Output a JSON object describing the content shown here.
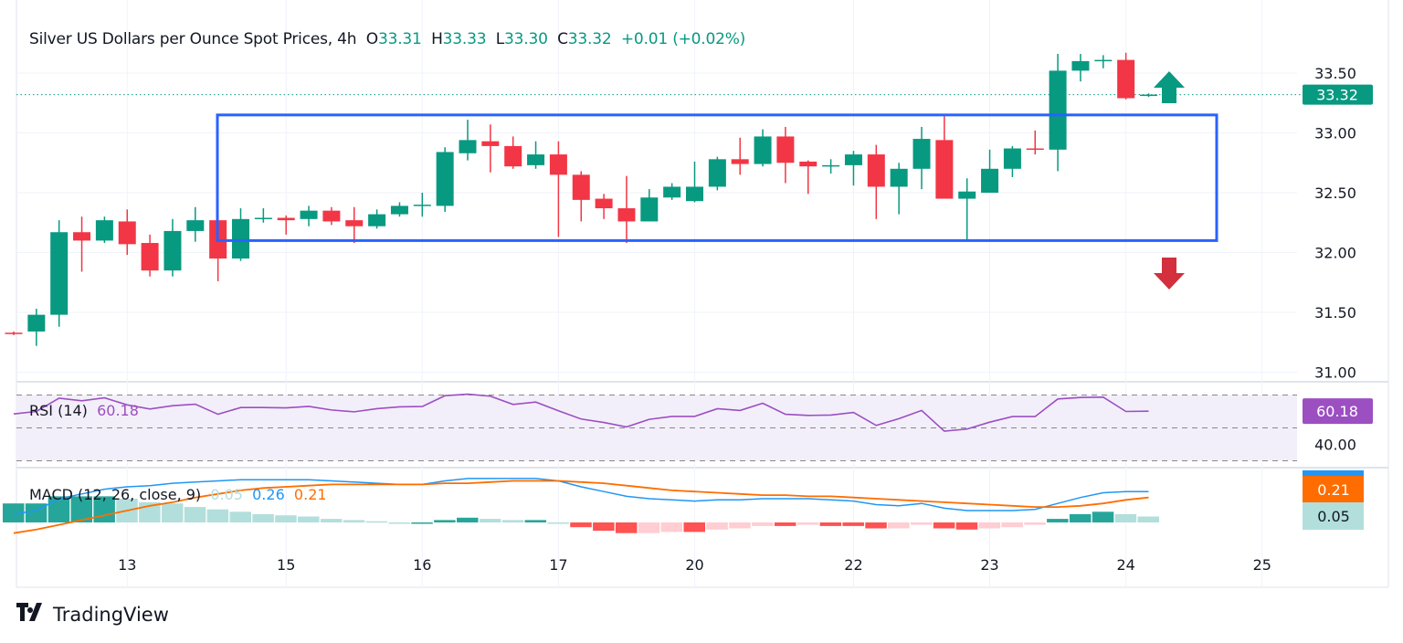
{
  "legend": {
    "title": "Silver US Dollars per Ounce Spot Prices, 4h",
    "o_label": "O",
    "o_value": "33.31",
    "h_label": "H",
    "h_value": "33.33",
    "l_label": "L",
    "l_value": "33.30",
    "c_label": "C",
    "c_value": "33.32",
    "change": "+0.01 (+0.02%)"
  },
  "rsi": {
    "label": "RSI (14)",
    "value": "60.18",
    "axis_label": "40.00",
    "badge": "60.18"
  },
  "macd": {
    "label": "MACD (12, 26, close, 9)",
    "hist_value": "0.05",
    "macd_value": "0.26",
    "signal_value": "0.21",
    "badge_signal": "0.21",
    "badge_hist": "0.05"
  },
  "price_badge": "33.32",
  "logo": {
    "text": "TradingView"
  },
  "colors": {
    "up": "#089981",
    "down": "#f23645",
    "box": "#2962ff",
    "rsi": "#9c4fc1",
    "macd": "#2196f3",
    "signal": "#ff6d00",
    "arrow_up": "#089981",
    "arrow_down": "#d32f3c"
  },
  "chart_data": {
    "type": "candlestick",
    "title": "Silver US Dollars per Ounce Spot Prices, 4h",
    "price_ticks": [
      "33.50",
      "33.00",
      "32.50",
      "32.00",
      "31.50",
      "31.00"
    ],
    "price_tick_values": [
      33.5,
      33.0,
      32.5,
      32.0,
      31.5,
      31.0
    ],
    "x_ticks": [
      "13",
      "15",
      "16",
      "17",
      "20",
      "22",
      "23",
      "24",
      "25"
    ],
    "x_tick_candle_index": [
      5,
      12,
      18,
      24,
      30,
      37,
      43,
      49,
      55
    ],
    "ylim": [
      30.9,
      33.75
    ],
    "candles": [
      [
        31.33,
        31.34,
        31.31,
        31.32
      ],
      [
        31.34,
        31.53,
        31.22,
        31.48
      ],
      [
        31.48,
        32.27,
        31.38,
        32.17
      ],
      [
        32.17,
        32.3,
        31.84,
        32.1
      ],
      [
        32.1,
        32.3,
        32.08,
        32.27
      ],
      [
        32.26,
        32.36,
        31.98,
        32.07
      ],
      [
        32.08,
        32.15,
        31.8,
        31.85
      ],
      [
        31.85,
        32.28,
        31.8,
        32.18
      ],
      [
        32.18,
        32.38,
        32.09,
        32.27
      ],
      [
        32.27,
        32.3,
        31.76,
        31.95
      ],
      [
        31.95,
        32.37,
        31.93,
        32.28
      ],
      [
        32.28,
        32.37,
        32.25,
        32.29
      ],
      [
        32.29,
        32.31,
        32.15,
        32.27
      ],
      [
        32.28,
        32.39,
        32.22,
        32.35
      ],
      [
        32.35,
        32.38,
        32.23,
        32.26
      ],
      [
        32.27,
        32.38,
        32.08,
        32.22
      ],
      [
        32.22,
        32.36,
        32.2,
        32.32
      ],
      [
        32.32,
        32.42,
        32.3,
        32.39
      ],
      [
        32.39,
        32.5,
        32.3,
        32.4
      ],
      [
        32.39,
        32.88,
        32.34,
        32.84
      ],
      [
        32.83,
        33.11,
        32.77,
        32.94
      ],
      [
        32.93,
        33.07,
        32.67,
        32.89
      ],
      [
        32.89,
        32.97,
        32.7,
        32.72
      ],
      [
        32.73,
        32.93,
        32.7,
        32.82
      ],
      [
        32.82,
        32.93,
        32.13,
        32.65
      ],
      [
        32.65,
        32.68,
        32.26,
        32.44
      ],
      [
        32.45,
        32.49,
        32.28,
        32.37
      ],
      [
        32.37,
        32.64,
        32.08,
        32.26
      ],
      [
        32.26,
        32.53,
        32.26,
        32.46
      ],
      [
        32.46,
        32.58,
        32.44,
        32.55
      ],
      [
        32.43,
        32.76,
        32.42,
        32.55
      ],
      [
        32.55,
        32.8,
        32.52,
        32.78
      ],
      [
        32.78,
        32.96,
        32.65,
        32.74
      ],
      [
        32.74,
        33.03,
        32.72,
        32.97
      ],
      [
        32.97,
        33.05,
        32.58,
        32.75
      ],
      [
        32.76,
        32.77,
        32.49,
        32.72
      ],
      [
        32.72,
        32.78,
        32.66,
        32.73
      ],
      [
        32.73,
        32.85,
        32.56,
        32.82
      ],
      [
        32.82,
        32.9,
        32.28,
        32.55
      ],
      [
        32.55,
        32.75,
        32.32,
        32.7
      ],
      [
        32.7,
        33.05,
        32.53,
        32.95
      ],
      [
        32.94,
        33.14,
        32.45,
        32.45
      ],
      [
        32.45,
        32.62,
        32.1,
        32.51
      ],
      [
        32.5,
        32.86,
        32.5,
        32.7
      ],
      [
        32.7,
        32.89,
        32.63,
        32.87
      ],
      [
        32.87,
        33.02,
        32.82,
        32.86
      ],
      [
        32.86,
        33.66,
        32.68,
        33.52
      ],
      [
        33.52,
        33.66,
        33.43,
        33.6
      ],
      [
        33.6,
        33.65,
        33.54,
        33.61
      ],
      [
        33.61,
        33.67,
        33.28,
        33.29
      ],
      [
        33.31,
        33.33,
        33.3,
        33.32
      ]
    ],
    "candle_format": [
      "open",
      "high",
      "low",
      "close"
    ],
    "last_price": 33.32,
    "range_box": {
      "top": 33.15,
      "bottom": 32.1,
      "start_index": 9,
      "end_index": 53
    },
    "rsi_levels": [
      70,
      50,
      30
    ],
    "rsi": [
      58.5,
      60,
      68.1,
      66.5,
      68.3,
      64,
      61.5,
      63.5,
      64.4,
      58.3,
      62.4,
      62.4,
      62.2,
      63.1,
      60.9,
      59.8,
      61.7,
      62.8,
      63,
      69.6,
      70.5,
      69.3,
      64.3,
      65.7,
      60.4,
      55.4,
      53.3,
      50.6,
      55.2,
      57,
      57,
      61.7,
      60.6,
      65,
      58.3,
      57.6,
      57.8,
      59.4,
      51.5,
      55.6,
      60.6,
      48,
      49.3,
      53.5,
      56.9,
      56.9,
      67.6,
      68.5,
      68.7,
      60,
      60.18
    ],
    "macd": [
      0.07,
      0.1,
      0.2,
      0.24,
      0.28,
      0.3,
      0.31,
      0.33,
      0.34,
      0.35,
      0.36,
      0.36,
      0.36,
      0.36,
      0.35,
      0.34,
      0.33,
      0.32,
      0.32,
      0.35,
      0.37,
      0.37,
      0.37,
      0.37,
      0.35,
      0.3,
      0.26,
      0.22,
      0.2,
      0.19,
      0.18,
      0.19,
      0.19,
      0.2,
      0.2,
      0.2,
      0.19,
      0.18,
      0.15,
      0.14,
      0.16,
      0.12,
      0.1,
      0.1,
      0.1,
      0.11,
      0.16,
      0.21,
      0.25,
      0.26,
      0.26
    ],
    "signal": [
      -0.09,
      -0.06,
      -0.02,
      0.02,
      0.06,
      0.1,
      0.14,
      0.17,
      0.21,
      0.24,
      0.27,
      0.29,
      0.3,
      0.31,
      0.32,
      0.32,
      0.32,
      0.32,
      0.32,
      0.33,
      0.33,
      0.34,
      0.35,
      0.35,
      0.35,
      0.34,
      0.33,
      0.31,
      0.29,
      0.27,
      0.26,
      0.25,
      0.24,
      0.23,
      0.23,
      0.22,
      0.22,
      0.21,
      0.2,
      0.19,
      0.18,
      0.17,
      0.16,
      0.15,
      0.14,
      0.13,
      0.13,
      0.14,
      0.16,
      0.19,
      0.21
    ]
  }
}
